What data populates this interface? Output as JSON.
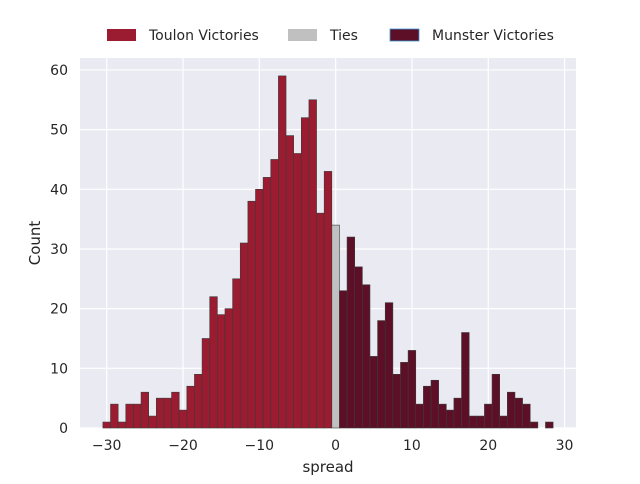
{
  "chart_data": {
    "type": "bar",
    "xlabel": "spread",
    "ylabel": "Count",
    "xlim": [
      -33.5,
      31.5
    ],
    "ylim": [
      0,
      62
    ],
    "xticks": [
      -30,
      -20,
      -10,
      0,
      10,
      20,
      30
    ],
    "yticks": [
      0,
      10,
      20,
      30,
      40,
      50,
      60
    ],
    "xtick_labels": [
      "−30",
      "−20",
      "−10",
      "0",
      "10",
      "20",
      "30"
    ],
    "ytick_labels": [
      "0",
      "10",
      "20",
      "30",
      "40",
      "50",
      "60"
    ],
    "grid": true,
    "legend_position": "top-center",
    "series": [
      {
        "name": "Toulon Victories",
        "color": "#9b1b30",
        "x": [
          -30,
          -29,
          -28,
          -27,
          -26,
          -25,
          -24,
          -23,
          -22,
          -21,
          -20,
          -19,
          -18,
          -17,
          -16,
          -15,
          -14,
          -13,
          -12,
          -11,
          -10,
          -9,
          -8,
          -7,
          -6,
          -5,
          -4,
          -3,
          -2,
          -1
        ],
        "values": [
          1,
          4,
          1,
          4,
          4,
          6,
          2,
          5,
          5,
          6,
          3,
          7,
          9,
          15,
          22,
          19,
          20,
          25,
          31,
          38,
          40,
          42,
          45,
          59,
          49,
          46,
          52,
          55,
          36,
          43
        ]
      },
      {
        "name": "Ties",
        "color": "#c0c0c0",
        "x": [
          0
        ],
        "values": [
          34
        ]
      },
      {
        "name": "Munster Victories",
        "color": "#5c0f26",
        "x": [
          1,
          2,
          3,
          4,
          5,
          6,
          7,
          8,
          9,
          10,
          11,
          12,
          13,
          14,
          15,
          16,
          17,
          18,
          19,
          20,
          21,
          22,
          23,
          24,
          25,
          26,
          27,
          28
        ],
        "values": [
          23,
          32,
          27,
          24,
          12,
          18,
          21,
          9,
          11,
          13,
          4,
          7,
          8,
          4,
          3,
          5,
          16,
          2,
          2,
          4,
          9,
          2,
          6,
          5,
          4,
          1,
          0,
          1
        ]
      }
    ]
  }
}
